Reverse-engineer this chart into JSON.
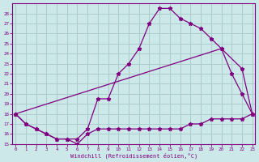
{
  "xlabel": "Windchill (Refroidissement éolien,°C)",
  "background_color": "#cce8e8",
  "grid_color": "#aacccc",
  "line_color": "#800080",
  "series_main": {
    "x": [
      0,
      1,
      2,
      3,
      4,
      5,
      6,
      7,
      8,
      9,
      10,
      11,
      12,
      13,
      14,
      15,
      16,
      17,
      18,
      19,
      20,
      21,
      22,
      23
    ],
    "y": [
      18,
      17,
      16.5,
      16,
      15.5,
      15.5,
      15.5,
      16.5,
      19.5,
      19.5,
      22,
      23,
      24.5,
      27,
      28.5,
      28.5,
      27.5,
      27,
      26.5,
      25.5,
      24.5,
      22,
      20,
      18
    ]
  },
  "series_low": {
    "x": [
      0,
      1,
      2,
      3,
      4,
      5,
      6,
      7,
      8,
      9,
      10,
      11,
      12,
      13,
      14,
      15,
      16,
      17,
      18,
      19,
      20,
      21,
      22,
      23
    ],
    "y": [
      18,
      17,
      16.5,
      16,
      15.5,
      15.5,
      15,
      16,
      16.5,
      16.5,
      16.5,
      16.5,
      16.5,
      16.5,
      16.5,
      16.5,
      16.5,
      17,
      17,
      17.5,
      17.5,
      17.5,
      17.5,
      18
    ]
  },
  "series_diag": {
    "x": [
      0,
      20,
      22,
      23
    ],
    "y": [
      18,
      24.5,
      22.5,
      18
    ]
  },
  "ylim": [
    15,
    29
  ],
  "yticks": [
    15,
    16,
    17,
    18,
    19,
    20,
    21,
    22,
    23,
    24,
    25,
    26,
    27,
    28
  ],
  "xlim": [
    -0.3,
    23.3
  ],
  "xticks": [
    0,
    1,
    2,
    3,
    4,
    5,
    6,
    7,
    8,
    9,
    10,
    11,
    12,
    13,
    14,
    15,
    16,
    17,
    18,
    19,
    20,
    21,
    22,
    23
  ]
}
